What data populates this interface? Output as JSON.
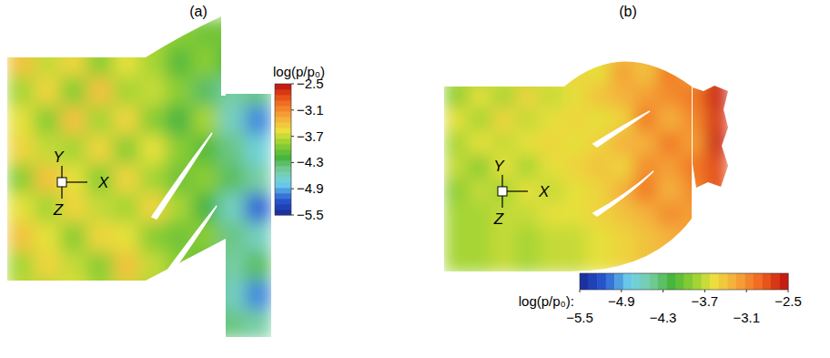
{
  "chart_data": [
    {
      "type": "heatmap",
      "title": "(a)",
      "axis_labels": [
        "X",
        "Y",
        "Z"
      ],
      "colorbar": {
        "label": "log(p/p₀)",
        "range": [
          -5.5,
          -2.5
        ],
        "ticks": [
          {
            "value": -2.5,
            "label": "−2.5"
          },
          {
            "value": -3.1,
            "label": "−3.1"
          },
          {
            "value": -3.7,
            "label": "−3.7"
          },
          {
            "value": -4.3,
            "label": "−4.3"
          },
          {
            "value": -4.9,
            "label": "−4.9"
          },
          {
            "value": -5.5,
            "label": "−5.5"
          }
        ]
      },
      "cells": [
        [
          -3.7,
          -3.7,
          -3.7,
          -3.7,
          -3.7,
          -3.8,
          -3.9,
          -4.0,
          -4.0,
          -4.0
        ],
        [
          -3.4,
          -3.7,
          -3.5,
          -3.9,
          -3.6,
          -3.8,
          -4.1,
          -3.9,
          -4.2,
          -4.2
        ],
        [
          -3.8,
          -3.5,
          -3.9,
          -3.4,
          -3.8,
          -3.7,
          -3.9,
          -4.3,
          -4.5,
          -4.4
        ],
        [
          -3.6,
          -3.9,
          -3.4,
          -3.8,
          -3.5,
          -3.9,
          -4.2,
          -3.8,
          -4.6,
          -5.0
        ],
        [
          -3.5,
          -3.7,
          -3.8,
          -3.5,
          -3.9,
          -3.6,
          -3.9,
          -4.1,
          -4.4,
          -4.7
        ],
        [
          -3.9,
          -3.4,
          -3.6,
          -3.9,
          -3.5,
          -3.8,
          -4.0,
          -3.9,
          -4.3,
          -4.5
        ],
        [
          -3.6,
          -3.8,
          -3.5,
          -3.7,
          -3.8,
          -3.5,
          -3.8,
          -4.2,
          -4.6,
          -5.1
        ],
        [
          -3.4,
          -3.6,
          -3.9,
          -3.5,
          -3.6,
          -3.9,
          -4.0,
          -3.9,
          -4.4,
          -4.6
        ],
        [
          -3.8,
          -3.5,
          -3.7,
          -3.9,
          -3.4,
          -3.7,
          -3.9,
          -4.1,
          -4.5,
          -4.3
        ],
        [
          -3.7,
          -3.8,
          -3.6,
          -3.8,
          -3.7,
          -3.8,
          -4.0,
          -4.2,
          -4.6,
          -5.0
        ],
        [
          -3.7,
          -3.7,
          -3.7,
          -3.7,
          -3.7,
          -3.8,
          -3.9,
          -4.1,
          -4.4,
          -4.5
        ]
      ]
    },
    {
      "type": "heatmap",
      "title": "(b)",
      "axis_labels": [
        "X",
        "Y",
        "Z"
      ],
      "colorbar": {
        "label": "log(p/p₀):",
        "range": [
          -5.5,
          -2.5
        ],
        "ticks": [
          {
            "value": -5.5,
            "label": "−5.5"
          },
          {
            "value": -4.9,
            "label": "−4.9"
          },
          {
            "value": -4.3,
            "label": "−4.3"
          },
          {
            "value": -3.7,
            "label": "−3.7"
          },
          {
            "value": -3.1,
            "label": "−3.1"
          },
          {
            "value": -2.5,
            "label": "−2.5"
          }
        ]
      },
      "cells": [
        [
          -3.8,
          -3.8,
          -3.7,
          -3.8,
          -3.7,
          -3.6,
          -3.5,
          -3.4,
          -3.3,
          -3.2,
          -3.1,
          -2.8
        ],
        [
          -3.7,
          -3.9,
          -3.6,
          -3.8,
          -3.6,
          -3.5,
          -3.6,
          -3.2,
          -3.4,
          -3.0,
          -3.2,
          -2.7
        ],
        [
          -3.9,
          -3.6,
          -3.8,
          -3.5,
          -3.7,
          -3.6,
          -3.4,
          -3.3,
          -3.2,
          -3.1,
          -3.0,
          -2.6
        ],
        [
          -3.6,
          -3.8,
          -3.5,
          -3.7,
          -3.6,
          -3.5,
          -3.6,
          -3.5,
          -3.0,
          -3.3,
          -3.1,
          -2.7
        ],
        [
          -3.8,
          -3.6,
          -3.7,
          -3.6,
          -3.5,
          -3.6,
          -3.5,
          -3.3,
          -3.3,
          -3.0,
          -3.2,
          -2.6
        ],
        [
          -3.7,
          -3.9,
          -3.6,
          -3.8,
          -3.6,
          -3.5,
          -3.4,
          -3.5,
          -3.1,
          -3.2,
          -3.0,
          -2.8
        ],
        [
          -3.9,
          -3.7,
          -3.8,
          -3.6,
          -3.7,
          -3.6,
          -3.5,
          -3.3,
          -3.0,
          -3.3,
          -3.1,
          -2.8
        ],
        [
          -3.8,
          -3.8,
          -3.7,
          -3.7,
          -3.6,
          -3.6,
          -3.5,
          -3.4,
          -3.3,
          -3.1,
          -3.2,
          -2.9
        ],
        [
          -3.8,
          -3.8,
          -3.7,
          -3.8,
          -3.7,
          -3.7,
          -3.6,
          -3.5,
          -3.4,
          -3.3,
          -3.2,
          -2.9
        ],
        [
          -3.8,
          -3.8,
          -3.7,
          -3.8,
          -3.7,
          -3.7,
          -3.6,
          -3.5,
          -3.4,
          -3.3,
          -3.2,
          -2.9
        ]
      ]
    }
  ]
}
